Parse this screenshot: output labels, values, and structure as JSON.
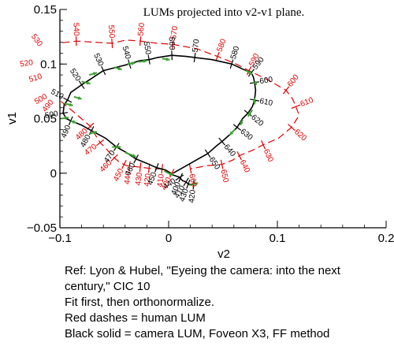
{
  "chart_data": {
    "type": "line",
    "title": "LUMs projected into v2-v1 plane.",
    "xlabel": "v2",
    "ylabel": "v1",
    "xlim": [
      -0.1,
      0.2
    ],
    "ylim": [
      -0.05,
      0.15
    ],
    "x_ticks": [
      -0.1,
      0,
      0.1,
      0.2
    ],
    "x_tick_labels": [
      "−0.1",
      "0",
      "0.1",
      "0.2"
    ],
    "y_ticks": [
      -0.05,
      0,
      0.05,
      0.1,
      0.15
    ],
    "y_tick_labels": [
      "−0.05",
      "0",
      "0.05",
      "0.1",
      "0.15"
    ],
    "grid": false,
    "series": [
      {
        "color": "#e00000",
        "style": "dashed",
        "points": [
          {
            "x": 0.003,
            "y": 0.0,
            "label": "400"
          },
          {
            "x": -0.003,
            "y": 0.003
          },
          {
            "x": -0.006,
            "y": 0.004,
            "label": "410"
          },
          {
            "x": -0.013,
            "y": 0.004
          },
          {
            "x": -0.018,
            "y": 0.0045,
            "label": "420"
          },
          {
            "x": -0.022,
            "y": 0.005
          },
          {
            "x": -0.026,
            "y": 0.0055,
            "label": "430"
          },
          {
            "x": -0.031,
            "y": 0.006
          },
          {
            "x": -0.036,
            "y": 0.0065,
            "label": "440"
          },
          {
            "x": -0.039,
            "y": 0.007
          },
          {
            "x": -0.041,
            "y": 0.008,
            "label": "450"
          },
          {
            "x": -0.045,
            "y": 0.01
          },
          {
            "x": -0.05,
            "y": 0.014,
            "label": "460"
          },
          {
            "x": -0.057,
            "y": 0.022
          },
          {
            "x": -0.063,
            "y": 0.028,
            "label": "470"
          },
          {
            "x": -0.068,
            "y": 0.036
          },
          {
            "x": -0.072,
            "y": 0.043,
            "label": "480"
          },
          {
            "x": -0.086,
            "y": 0.055
          },
          {
            "x": -0.104,
            "y": 0.07,
            "label": "490"
          },
          {
            "x": -0.106,
            "y": 0.071
          },
          {
            "x": -0.108,
            "y": 0.073,
            "label": "500"
          },
          {
            "x": -0.11,
            "y": 0.078
          },
          {
            "x": -0.112,
            "y": 0.09,
            "label": "510"
          },
          {
            "x": -0.115,
            "y": 0.095
          },
          {
            "x": -0.12,
            "y": 0.102,
            "label": "520"
          },
          {
            "x": -0.117,
            "y": 0.108
          },
          {
            "x": -0.115,
            "y": 0.113,
            "label": "530"
          },
          {
            "x": -0.102,
            "y": 0.119
          },
          {
            "x": -0.085,
            "y": 0.121,
            "label": "540"
          },
          {
            "x": -0.068,
            "y": 0.12
          },
          {
            "x": -0.052,
            "y": 0.119,
            "label": "550"
          },
          {
            "x": -0.039,
            "y": 0.122
          },
          {
            "x": -0.026,
            "y": 0.121,
            "label": "560"
          },
          {
            "x": -0.011,
            "y": 0.119
          },
          {
            "x": 0.004,
            "y": 0.118,
            "label": "570"
          },
          {
            "x": 0.026,
            "y": 0.114
          },
          {
            "x": 0.045,
            "y": 0.107,
            "label": "580"
          },
          {
            "x": 0.06,
            "y": 0.101
          },
          {
            "x": 0.074,
            "y": 0.094,
            "label": "590"
          },
          {
            "x": 0.092,
            "y": 0.085
          },
          {
            "x": 0.108,
            "y": 0.076,
            "label": "600"
          },
          {
            "x": 0.114,
            "y": 0.068
          },
          {
            "x": 0.117,
            "y": 0.061,
            "label": "610"
          },
          {
            "x": 0.12,
            "y": 0.053
          },
          {
            "x": 0.113,
            "y": 0.042,
            "label": "620"
          },
          {
            "x": 0.101,
            "y": 0.032
          },
          {
            "x": 0.087,
            "y": 0.026,
            "label": "630"
          },
          {
            "x": 0.077,
            "y": 0.021
          },
          {
            "x": 0.065,
            "y": 0.016,
            "label": "640"
          },
          {
            "x": 0.059,
            "y": 0.012
          },
          {
            "x": 0.049,
            "y": 0.008,
            "label": "650"
          },
          {
            "x": 0.036,
            "y": 0.007
          },
          {
            "x": 0.02,
            "y": 0.004,
            "label": "660"
          }
        ]
      },
      {
        "color": "#000000",
        "style": "solid",
        "points": [
          {
            "x": 0.023,
            "y": -0.0105,
            "label": "420"
          },
          {
            "x": 0.018,
            "y": -0.01,
            "label": "430"
          },
          {
            "x": 0.016,
            "y": -0.008,
            "label": "410"
          },
          {
            "x": 0.013,
            "y": -0.007
          },
          {
            "x": 0.01,
            "y": -0.004,
            "label": "440"
          },
          {
            "x": 0.011,
            "y": -0.004,
            "label": "400"
          },
          {
            "x": 0.005,
            "y": -0.002
          },
          {
            "x": 0.003,
            "y": -0.001
          },
          {
            "x": -0.003,
            "y": 0.003
          },
          {
            "x": -0.007,
            "y": 0.004
          },
          {
            "x": -0.011,
            "y": 0.005,
            "label": "450"
          },
          {
            "x": -0.02,
            "y": 0.009
          },
          {
            "x": -0.03,
            "y": 0.013,
            "label": "460"
          },
          {
            "x": -0.039,
            "y": 0.019
          },
          {
            "x": -0.048,
            "y": 0.024,
            "label": "470"
          },
          {
            "x": -0.058,
            "y": 0.032
          },
          {
            "x": -0.071,
            "y": 0.039,
            "label": "480"
          },
          {
            "x": -0.08,
            "y": 0.044
          },
          {
            "x": -0.09,
            "y": 0.048,
            "label": "490"
          },
          {
            "x": -0.094,
            "y": 0.05
          },
          {
            "x": -0.097,
            "y": 0.055,
            "label": "500"
          },
          {
            "x": -0.096,
            "y": 0.063
          },
          {
            "x": -0.093,
            "y": 0.067,
            "label": "510"
          },
          {
            "x": -0.09,
            "y": 0.074
          },
          {
            "x": -0.08,
            "y": 0.081,
            "label": "520"
          },
          {
            "x": -0.072,
            "y": 0.086
          },
          {
            "x": -0.06,
            "y": 0.094,
            "label": "530"
          },
          {
            "x": -0.048,
            "y": 0.097
          },
          {
            "x": -0.036,
            "y": 0.1,
            "label": "540"
          },
          {
            "x": -0.027,
            "y": 0.103
          },
          {
            "x": -0.018,
            "y": 0.104,
            "label": "550"
          },
          {
            "x": -0.01,
            "y": 0.106
          },
          {
            "x": 0.003,
            "y": 0.108,
            "label": "560"
          },
          {
            "x": 0.016,
            "y": 0.107
          },
          {
            "x": 0.024,
            "y": 0.106,
            "label": "570"
          },
          {
            "x": 0.04,
            "y": 0.104
          },
          {
            "x": 0.058,
            "y": 0.1,
            "label": "580"
          },
          {
            "x": 0.069,
            "y": 0.095
          },
          {
            "x": 0.076,
            "y": 0.092,
            "label": "590"
          },
          {
            "x": 0.078,
            "y": 0.088
          },
          {
            "x": 0.079,
            "y": 0.083,
            "label": "600"
          },
          {
            "x": 0.08,
            "y": 0.076
          },
          {
            "x": 0.079,
            "y": 0.067,
            "label": "610"
          },
          {
            "x": 0.077,
            "y": 0.061
          },
          {
            "x": 0.073,
            "y": 0.055,
            "label": "620"
          },
          {
            "x": 0.068,
            "y": 0.05
          },
          {
            "x": 0.063,
            "y": 0.042,
            "label": "630"
          },
          {
            "x": 0.057,
            "y": 0.036
          },
          {
            "x": 0.049,
            "y": 0.029,
            "label": "640"
          },
          {
            "x": 0.044,
            "y": 0.025
          },
          {
            "x": 0.036,
            "y": 0.018,
            "label": "650"
          },
          {
            "x": 0.02,
            "y": 0.009
          },
          {
            "x": 0.004,
            "y": 0.0
          }
        ]
      }
    ],
    "arrows": [
      [
        0.019,
        -0.011,
        0.027,
        -0.009
      ],
      [
        -0.004,
        0.002,
        0.004,
        -0.002
      ],
      [
        -0.04,
        0.019,
        -0.03,
        0.015
      ],
      [
        -0.052,
        0.024,
        -0.044,
        0.024
      ],
      [
        -0.073,
        0.036,
        -0.066,
        0.038
      ],
      [
        -0.09,
        0.048,
        -0.085,
        0.046
      ],
      [
        -0.099,
        0.05,
        -0.092,
        0.051
      ],
      [
        -0.096,
        0.064,
        -0.088,
        0.062
      ],
      [
        -0.087,
        0.07,
        -0.08,
        0.068
      ],
      [
        -0.08,
        0.084,
        -0.072,
        0.082
      ],
      [
        -0.073,
        0.09,
        -0.066,
        0.092
      ],
      [
        -0.05,
        0.097,
        -0.043,
        0.095
      ],
      [
        -0.038,
        0.1,
        -0.031,
        0.101
      ],
      [
        -0.028,
        0.102,
        -0.02,
        0.103
      ],
      [
        -0.006,
        0.105,
        0.001,
        0.104
      ],
      [
        0.071,
        0.094,
        0.077,
        0.091
      ],
      [
        0.079,
        0.084,
        0.081,
        0.081
      ],
      [
        0.079,
        0.069,
        0.079,
        0.063
      ],
      [
        0.077,
        0.058,
        0.073,
        0.052
      ],
      [
        0.068,
        0.049,
        0.066,
        0.044
      ],
      [
        0.061,
        0.04,
        0.056,
        0.035
      ]
    ]
  },
  "notes": [
    "Ref: Lyon & Hubel, \"Eyeing the camera: into the next",
    "century,\" CIC 10",
    "Fit first, then orthonormalize.",
    "Red dashes = human LUM",
    "Black solid = camera LUM, Foveon X3, FF method"
  ]
}
